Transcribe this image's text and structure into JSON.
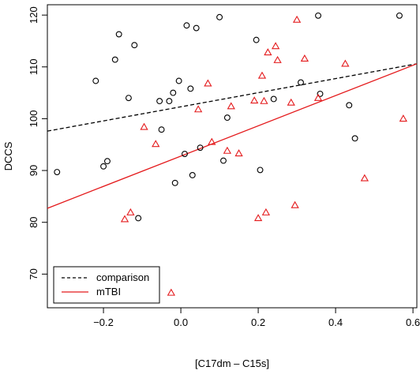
{
  "chart_data": {
    "type": "scatter",
    "xlabel": "[C17dm – C15s]",
    "ylabel": "DCCS",
    "xlim": [
      -0.345,
      0.61
    ],
    "ylim": [
      63.5,
      122
    ],
    "x_ticks": [
      -0.2,
      0.0,
      0.2,
      0.4,
      0.6
    ],
    "x_tick_labels": [
      "−0.2",
      "0.0",
      "0.2",
      "0.4",
      "0.6"
    ],
    "y_ticks": [
      70,
      80,
      90,
      100,
      110,
      120
    ],
    "y_tick_labels": [
      "70",
      "80",
      "90",
      "100",
      "110",
      "120"
    ],
    "grid": false,
    "legend_position": "bottom-left",
    "series": [
      {
        "name": "comparison",
        "marker": "circle",
        "color": "#000000",
        "points": [
          [
            -0.32,
            89.7
          ],
          [
            -0.22,
            107.3
          ],
          [
            -0.2,
            90.8
          ],
          [
            -0.19,
            91.8
          ],
          [
            -0.17,
            111.4
          ],
          [
            -0.16,
            116.3
          ],
          [
            -0.135,
            104.0
          ],
          [
            -0.12,
            114.2
          ],
          [
            -0.11,
            80.8
          ],
          [
            -0.055,
            103.4
          ],
          [
            -0.05,
            97.9
          ],
          [
            -0.03,
            103.4
          ],
          [
            -0.02,
            105.0
          ],
          [
            -0.015,
            87.6
          ],
          [
            -0.005,
            107.3
          ],
          [
            0.01,
            93.2
          ],
          [
            0.015,
            118.0
          ],
          [
            0.025,
            105.8
          ],
          [
            0.03,
            89.1
          ],
          [
            0.04,
            117.5
          ],
          [
            0.05,
            94.4
          ],
          [
            0.1,
            119.6
          ],
          [
            0.11,
            91.9
          ],
          [
            0.12,
            100.2
          ],
          [
            0.195,
            115.2
          ],
          [
            0.205,
            90.1
          ],
          [
            0.24,
            103.8
          ],
          [
            0.31,
            107.0
          ],
          [
            0.355,
            119.9
          ],
          [
            0.36,
            104.8
          ],
          [
            0.435,
            102.6
          ],
          [
            0.45,
            96.2
          ],
          [
            0.565,
            119.9
          ]
        ],
        "fit_line": [
          [
            -0.345,
            97.6
          ],
          [
            0.61,
            110.6
          ]
        ],
        "line_style": "dashed"
      },
      {
        "name": "mTBI",
        "marker": "triangle",
        "color": "#e41a1c",
        "points": [
          [
            -0.145,
            80.6
          ],
          [
            -0.13,
            81.9
          ],
          [
            -0.095,
            98.4
          ],
          [
            -0.065,
            95.1
          ],
          [
            -0.025,
            66.4
          ],
          [
            0.045,
            101.8
          ],
          [
            0.07,
            106.8
          ],
          [
            0.08,
            95.5
          ],
          [
            0.12,
            93.8
          ],
          [
            0.13,
            102.4
          ],
          [
            0.15,
            93.3
          ],
          [
            0.19,
            103.5
          ],
          [
            0.2,
            80.8
          ],
          [
            0.21,
            108.3
          ],
          [
            0.215,
            103.4
          ],
          [
            0.22,
            81.9
          ],
          [
            0.225,
            112.8
          ],
          [
            0.245,
            114.0
          ],
          [
            0.25,
            111.3
          ],
          [
            0.285,
            103.1
          ],
          [
            0.295,
            83.3
          ],
          [
            0.3,
            119.1
          ],
          [
            0.32,
            111.6
          ],
          [
            0.355,
            104.0
          ],
          [
            0.425,
            110.6
          ],
          [
            0.475,
            88.5
          ],
          [
            0.575,
            100.0
          ]
        ],
        "fit_line": [
          [
            -0.345,
            82.7
          ],
          [
            0.61,
            110.6
          ]
        ],
        "line_style": "solid"
      }
    ]
  }
}
